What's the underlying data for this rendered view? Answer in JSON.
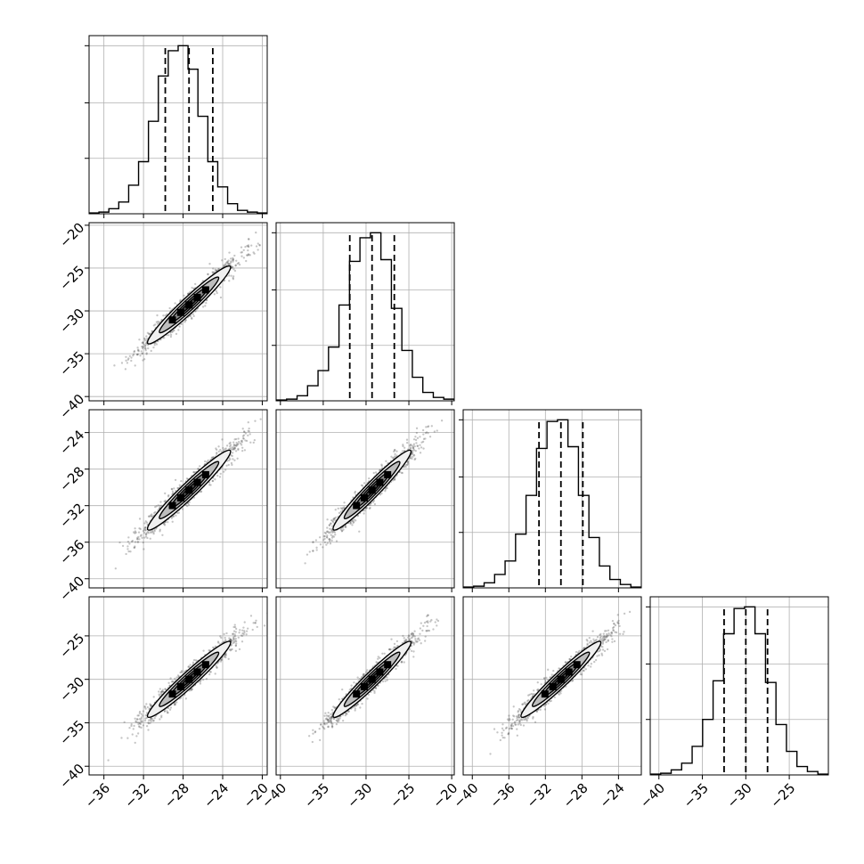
{
  "chart_data": {
    "type": "corner",
    "n_params": 4,
    "grid": true,
    "colors": {
      "line": "#000000",
      "scatter": "#5a5a5a",
      "contour_fills": [
        "#f0f0f0",
        "#bdbdbd",
        "#8a8a8a",
        "#555555"
      ],
      "grid": "#b0b0b0"
    },
    "params": [
      {
        "mean": -27.4,
        "sigma": 2.4,
        "range": [
          -37.5,
          -19.5
        ],
        "xticks": [
          -36,
          -32,
          -28,
          -24,
          -20
        ],
        "yticks": [],
        "quantiles": [
          -29.8,
          -27.4,
          -25.0
        ],
        "hist_counts": [
          0.005,
          0.01,
          0.03,
          0.07,
          0.17,
          0.31,
          0.55,
          0.82,
          0.97,
          1.0,
          0.86,
          0.58,
          0.31,
          0.16,
          0.06,
          0.02,
          0.01,
          0.005
        ]
      },
      {
        "mean": -29.3,
        "sigma": 2.6,
        "range": [
          -40.5,
          -19.7
        ],
        "xticks": [
          -40,
          -35,
          -30,
          -25,
          -20
        ],
        "yticks": [
          -20,
          -25,
          -30,
          -35,
          -40
        ],
        "quantiles": [
          -31.9,
          -29.3,
          -26.7
        ],
        "hist_counts": [
          0.005,
          0.01,
          0.03,
          0.09,
          0.18,
          0.32,
          0.57,
          0.83,
          0.97,
          1.0,
          0.84,
          0.55,
          0.3,
          0.14,
          0.05,
          0.02,
          0.01
        ]
      },
      {
        "mean": -30.3,
        "sigma": 2.5,
        "range": [
          -41.0,
          -21.5
        ],
        "xticks": [
          -40,
          -36,
          -32,
          -28,
          -24
        ],
        "yticks": [
          -24,
          -28,
          -32,
          -36,
          -40
        ],
        "quantiles": [
          -32.7,
          -30.3,
          -27.9
        ],
        "hist_counts": [
          0.005,
          0.01,
          0.03,
          0.08,
          0.16,
          0.32,
          0.55,
          0.83,
          0.99,
          1.0,
          0.84,
          0.55,
          0.3,
          0.13,
          0.05,
          0.02,
          0.005
        ]
      },
      {
        "mean": -30.0,
        "sigma": 2.5,
        "range": [
          -41.0,
          -20.5
        ],
        "xticks": [
          -40,
          -35,
          -30,
          -25
        ],
        "yticks": [
          -25,
          -30,
          -35,
          -40
        ],
        "quantiles": [
          -32.5,
          -30.0,
          -27.5
        ],
        "hist_counts": [
          0.005,
          0.01,
          0.03,
          0.07,
          0.17,
          0.33,
          0.56,
          0.84,
          0.99,
          1.0,
          0.84,
          0.55,
          0.3,
          0.14,
          0.05,
          0.02,
          0.005
        ]
      }
    ],
    "tick_labels": {
      "col0_x": [
        "−36",
        "−32",
        "−28",
        "−24",
        "−20"
      ],
      "col1_x": [
        "−40",
        "−35",
        "−30",
        "−25",
        "−20"
      ],
      "col2_x": [
        "−40",
        "−36",
        "−32",
        "−28",
        "−24"
      ],
      "col3_x": [
        "−40",
        "−35",
        "−30",
        "−25"
      ],
      "row1_y": [
        "−20",
        "−25",
        "−30",
        "−35",
        "−40"
      ],
      "row2_y": [
        "−24",
        "−28",
        "−32",
        "−36",
        "−40"
      ],
      "row3_y": [
        "−25",
        "−30",
        "−35",
        "−40"
      ]
    },
    "correlation": 0.965
  }
}
